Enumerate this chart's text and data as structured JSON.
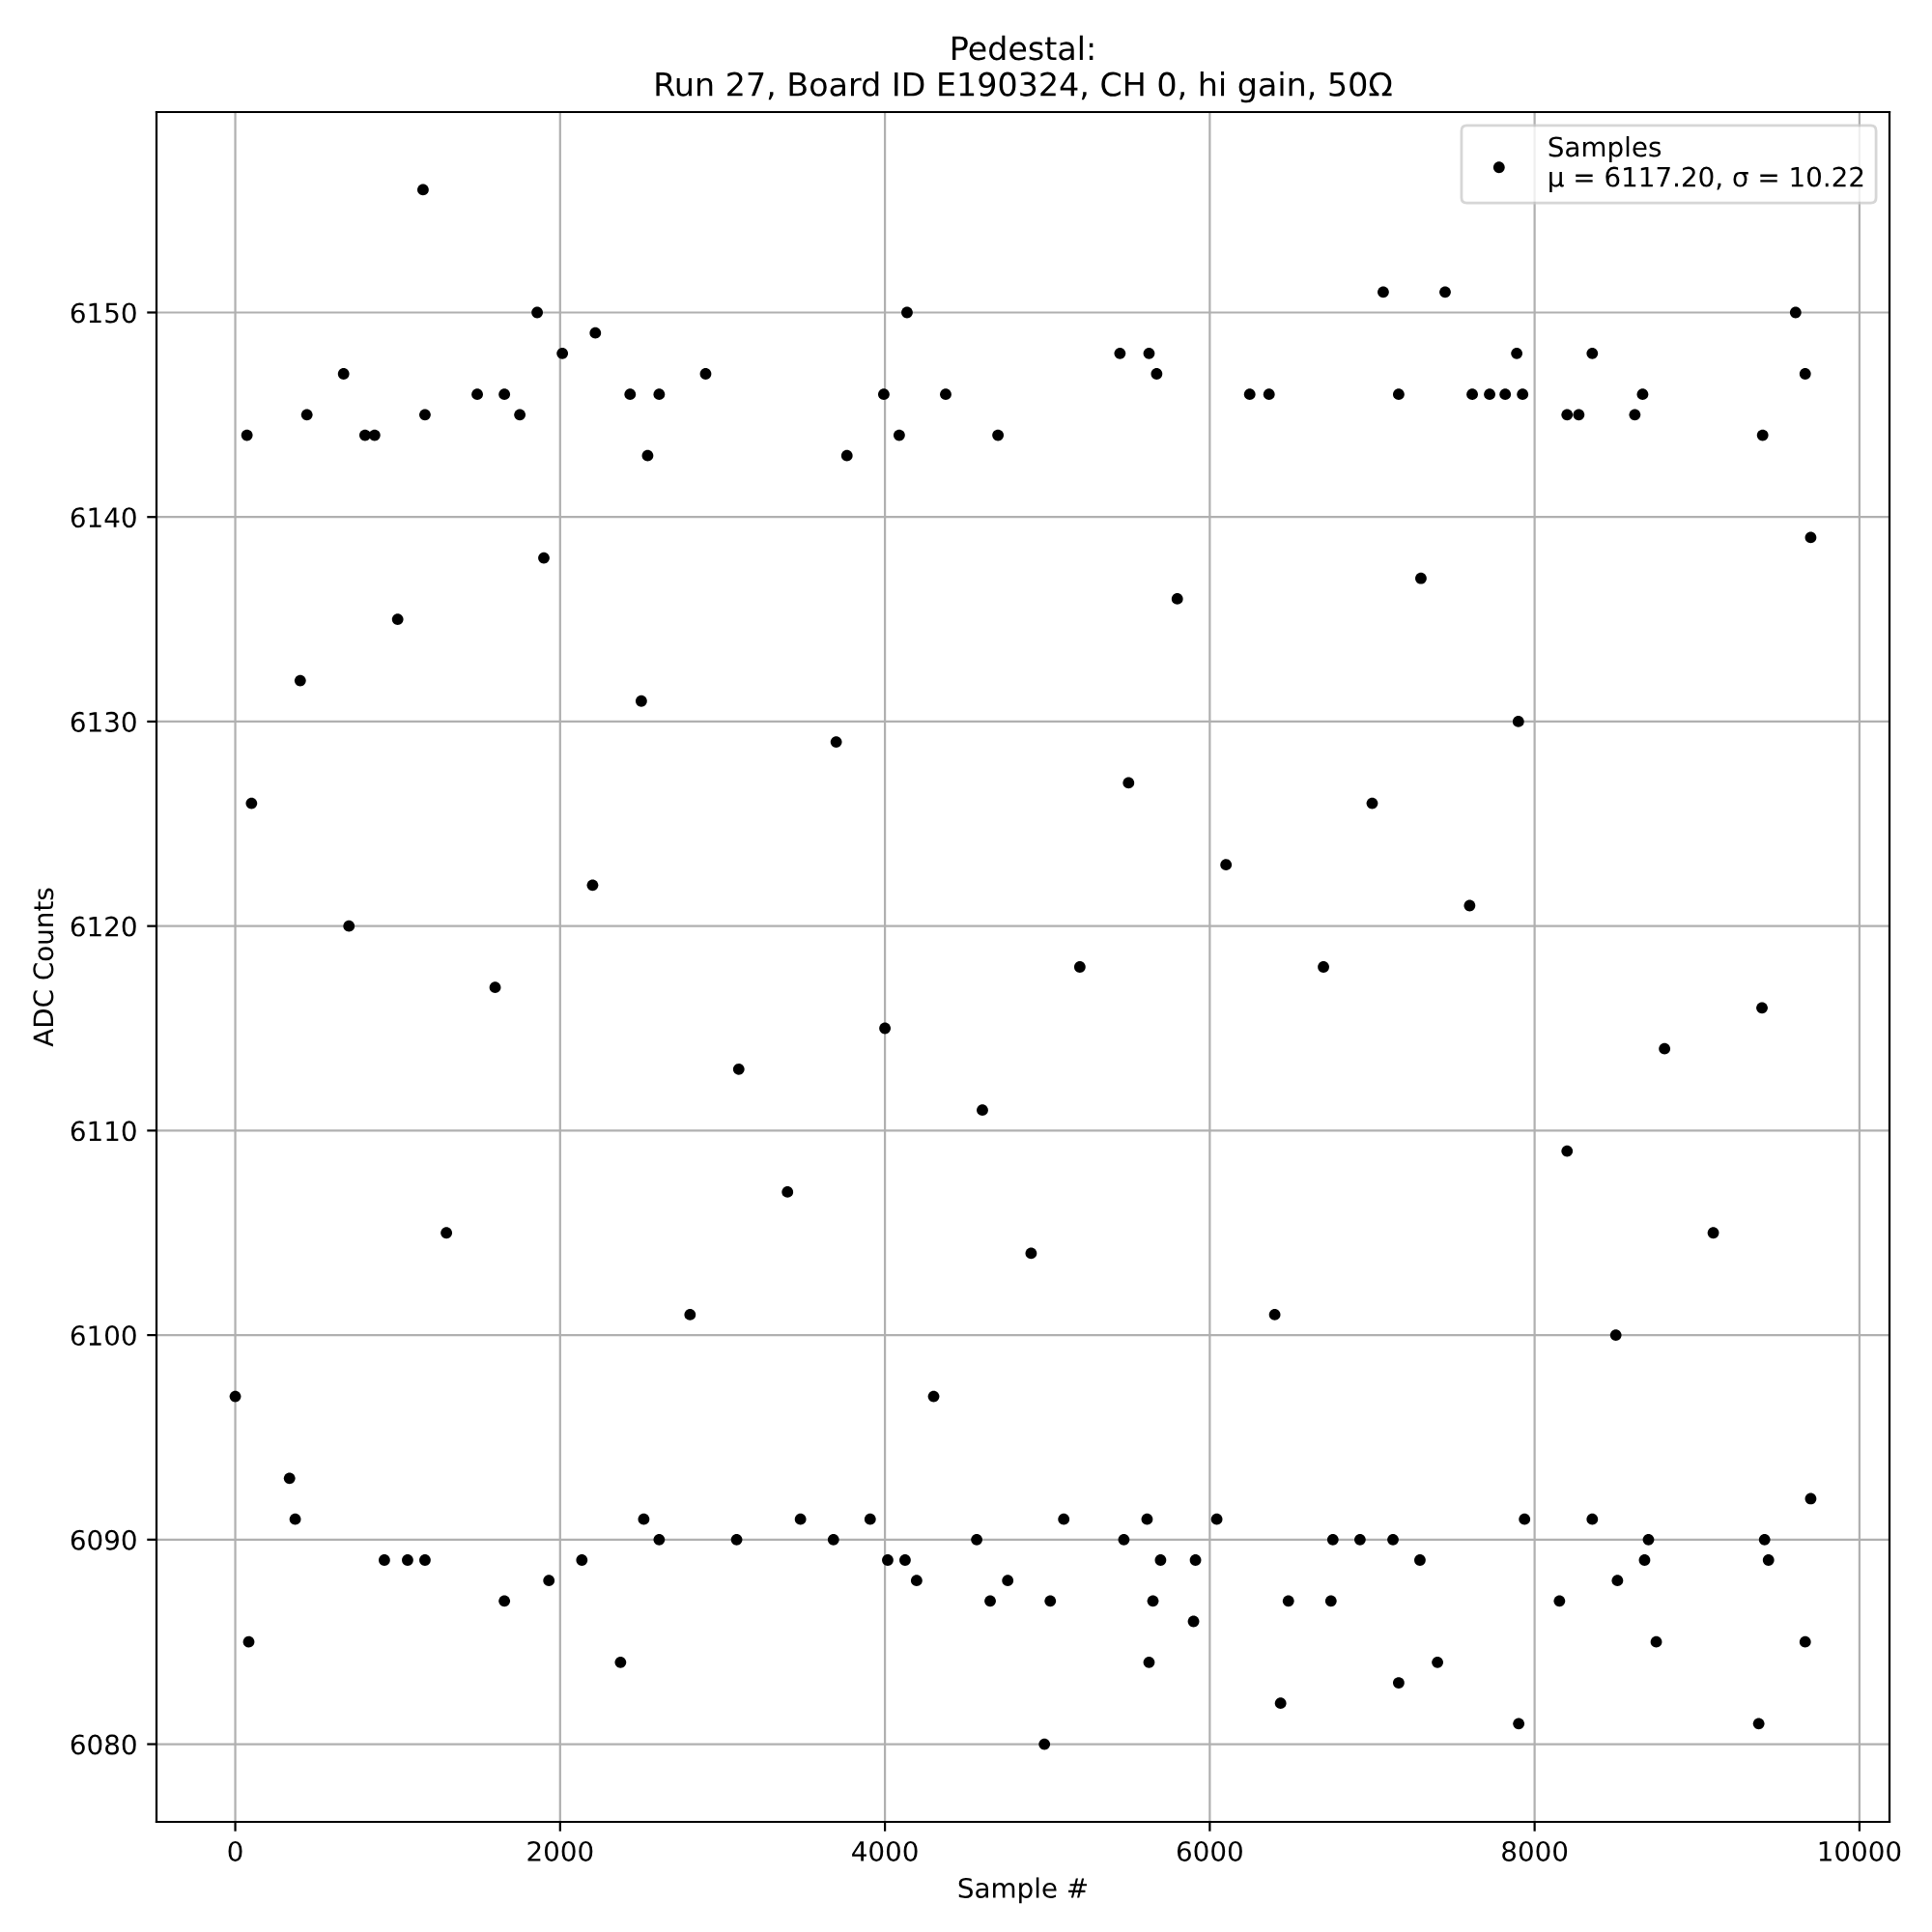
{
  "chart_data": {
    "type": "scatter",
    "title": "Pedestal:\nRun 27, Board ID E190324, CH 0, hi gain, 50Ω",
    "xlabel": "Sample #",
    "ylabel": "ADC Counts",
    "series": [
      {
        "name": "Samples\nμ = 6117.20, σ = 10.22",
        "color": "#000000",
        "x": [
          72,
          441,
          667,
          799,
          858,
          1156,
          1168,
          1490,
          1657,
          1752,
          1859,
          2014,
          2217,
          2431,
          2539,
          2610,
          2896,
          3766,
          3993,
          4088,
          4136,
          4374,
          4696,
          5447,
          5626,
          5673,
          6246,
          6365,
          7068,
          7163,
          7449,
          7616,
          7723,
          7819,
          7890,
          7926,
          8200,
          8272,
          8355,
          8617,
          8665,
          9404,
          9607,
          9666,
          0,
          83,
          334,
          369,
          918,
          1061,
          1168,
          1657,
          1931,
          2134,
          2372,
          2515,
          2610,
          3087,
          3480,
          3683,
          3909,
          4017,
          4124,
          4195,
          4565,
          4648,
          4756,
          4982,
          5018,
          5101,
          5471,
          5614,
          5626,
          5650,
          5697,
          5900,
          5912,
          6043,
          6436,
          6484,
          6746,
          6758,
          6925,
          7128,
          7163,
          7294,
          7402,
          7902,
          7938,
          8153,
          8355,
          8510,
          8677,
          8701,
          8749,
          9380,
          9416,
          9440,
          9666,
          9700,
          100,
          400,
          700,
          1000,
          1300,
          1600,
          1900,
          2200,
          2500,
          2800,
          3100,
          3400,
          3700,
          4000,
          4300,
          4600,
          4900,
          5200,
          5500,
          5800,
          6100,
          6400,
          6700,
          7000,
          7300,
          7600,
          7900,
          8200,
          8500,
          8800,
          9100,
          9400,
          9700
        ],
        "values": [
          6144,
          6145,
          6147,
          6144,
          6144,
          6156,
          6145,
          6146,
          6146,
          6145,
          6150,
          6148,
          6149,
          6146,
          6143,
          6146,
          6147,
          6143,
          6146,
          6144,
          6150,
          6146,
          6144,
          6148,
          6148,
          6147,
          6146,
          6146,
          6151,
          6146,
          6151,
          6146,
          6146,
          6146,
          6148,
          6146,
          6145,
          6145,
          6148,
          6145,
          6146,
          6144,
          6150,
          6147,
          6097,
          6085,
          6093,
          6091,
          6089,
          6089,
          6089,
          6087,
          6088,
          6089,
          6084,
          6091,
          6090,
          6090,
          6091,
          6090,
          6091,
          6089,
          6089,
          6088,
          6090,
          6087,
          6088,
          6080,
          6087,
          6091,
          6090,
          6091,
          6084,
          6087,
          6089,
          6086,
          6089,
          6091,
          6082,
          6087,
          6087,
          6090,
          6090,
          6090,
          6083,
          6089,
          6084,
          6081,
          6091,
          6087,
          6091,
          6088,
          6089,
          6090,
          6085,
          6081,
          6090,
          6089,
          6085,
          6092,
          6126,
          6132,
          6120,
          6135,
          6105,
          6117,
          6138,
          6122,
          6131,
          6101,
          6113,
          6107,
          6129,
          6115,
          6097,
          6111,
          6104,
          6118,
          6127,
          6136,
          6123,
          6101,
          6118,
          6126,
          6137,
          6121,
          6130,
          6109,
          6100,
          6114,
          6105,
          6116,
          6139
        ]
      }
    ],
    "xlim": [
      -485,
      10185
    ],
    "ylim": [
      6076.2,
      6159.8
    ],
    "xticks": [
      0,
      2000,
      4000,
      6000,
      8000,
      10000
    ],
    "yticks": [
      6080,
      6090,
      6100,
      6110,
      6120,
      6130,
      6140,
      6150
    ],
    "grid": true,
    "legend": "top right",
    "marker": "circle"
  }
}
